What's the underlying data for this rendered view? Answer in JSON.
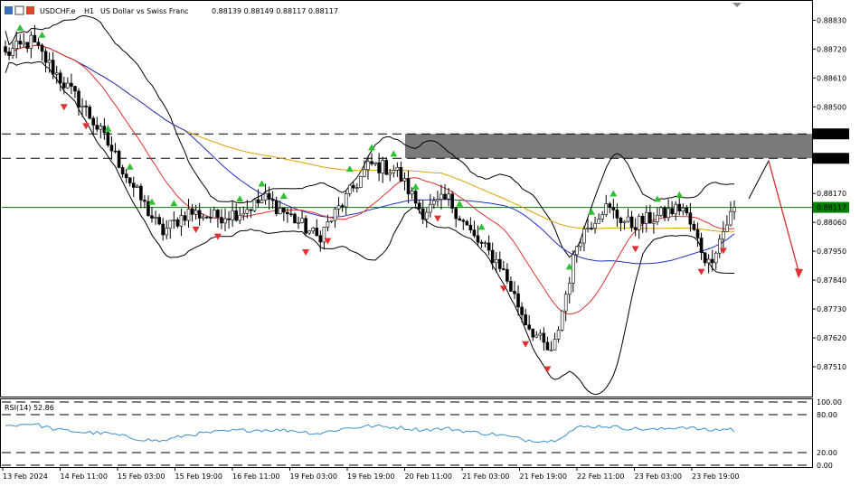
{
  "header": {
    "symbol": "USDCHF.e",
    "timeframe": "H1",
    "description": "US Dollar vs Swiss Franc",
    "ohlc": "0.88139 0.88149 0.88117 0.88117"
  },
  "rsi": {
    "label": "RSI(14) 52.86",
    "levels_text": [
      "100.00",
      "80.00",
      "20.00",
      "0.00"
    ]
  },
  "colors": {
    "up_arrow": "#2fc02f",
    "down_arrow": "#e03030",
    "ma_fast": "#e03030",
    "ma_mid": "#2030c0",
    "ma_slow": "#e0a000",
    "rsi_line": "#3a90d0",
    "price_line": "#008000",
    "zone": "#7a7a7a"
  },
  "chart_data": {
    "type": "candlestick",
    "price_range": [
      0.874,
      0.889
    ],
    "price_ticks": [
      "0.88830",
      "0.88720",
      "0.88610",
      "0.88500",
      "0.88397",
      "0.88304",
      "0.88170",
      "0.88117",
      "0.88060",
      "0.87950",
      "0.87840",
      "0.87730",
      "0.87620",
      "0.87510"
    ],
    "x_labels": [
      "13 Feb 2024",
      "14 Feb 11:00",
      "15 Feb 03:00",
      "15 Feb 19:00",
      "16 Feb 11:00",
      "19 Feb 03:00",
      "19 Feb 19:00",
      "20 Feb 11:00",
      "21 Feb 03:00",
      "21 Feb 19:00",
      "22 Feb 11:00",
      "23 Feb 03:00",
      "23 Feb 19:00"
    ],
    "current_price": 0.88117,
    "dashed_levels": [
      0.88397,
      0.88304
    ],
    "zone": [
      0.88304,
      0.88397
    ],
    "close_anchors": [
      0.887,
      0.8875,
      0.8862,
      0.885,
      0.8835,
      0.8818,
      0.8802,
      0.881,
      0.8808,
      0.881,
      0.8815,
      0.8808,
      0.88,
      0.8814,
      0.8828,
      0.8826,
      0.881,
      0.8815,
      0.88,
      0.879,
      0.8768,
      0.8755,
      0.88,
      0.8812,
      0.8805,
      0.8808,
      0.8812,
      0.879,
      0.8812
    ],
    "rsi_anchors": [
      62,
      66,
      56,
      52,
      50,
      42,
      38,
      48,
      52,
      55,
      56,
      55,
      50,
      58,
      62,
      60,
      56,
      58,
      52,
      48,
      40,
      38,
      60,
      62,
      58,
      56,
      61,
      55,
      58
    ]
  }
}
